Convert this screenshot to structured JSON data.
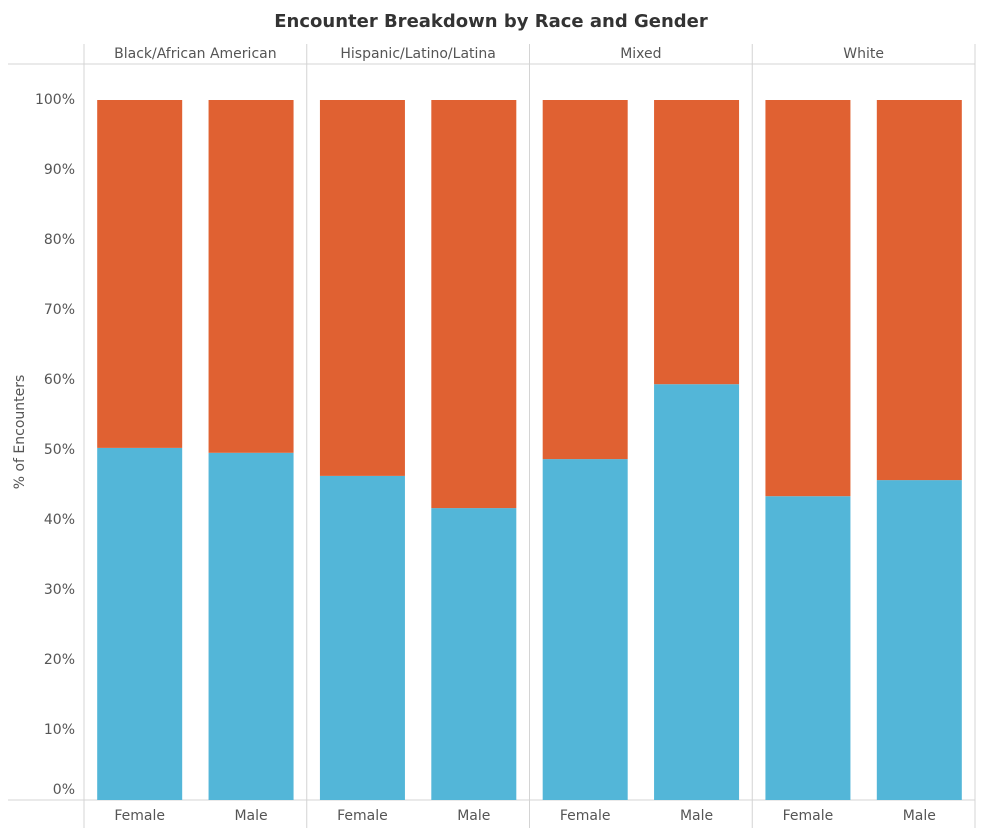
{
  "chart_data": {
    "type": "stacked-bar",
    "title": "Encounter Breakdown by Race and Gender",
    "y_label": "% of Encounters",
    "facets": [
      "Black/African American",
      "Hispanic/Latino/Latina",
      "Mixed",
      "White"
    ],
    "categories": [
      "Female",
      "Male",
      "Female",
      "Male",
      "Female",
      "Male",
      "Female",
      "Male"
    ],
    "series": [
      {
        "color": "#53b6d8",
        "values": [
          50.3,
          49.6,
          46.3,
          41.7,
          48.7,
          59.4,
          43.4,
          45.7
        ]
      },
      {
        "color": "#e06132",
        "values": [
          49.7,
          50.4,
          53.7,
          58.3,
          51.3,
          40.6,
          56.6,
          54.3
        ]
      }
    ],
    "ylim": [
      0,
      100
    ],
    "yticks": [
      {
        "value": 0,
        "label": "0%"
      },
      {
        "value": 10,
        "label": "10%"
      },
      {
        "value": 20,
        "label": "20%"
      },
      {
        "value": 30,
        "label": "30%"
      },
      {
        "value": 40,
        "label": "40%"
      },
      {
        "value": 50,
        "label": "50%"
      },
      {
        "value": 60,
        "label": "60%"
      },
      {
        "value": 70,
        "label": "70%"
      },
      {
        "value": 80,
        "label": "80%"
      },
      {
        "value": 90,
        "label": "90%"
      },
      {
        "value": 100,
        "label": "100%"
      }
    ]
  }
}
